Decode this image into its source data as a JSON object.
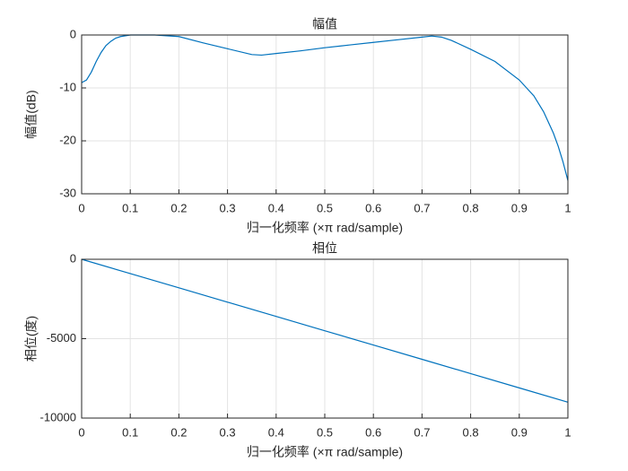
{
  "chart_data": [
    {
      "type": "line",
      "title": "幅值",
      "xlabel": "归一化频率  (×π rad/sample)",
      "ylabel": "幅值(dB)",
      "x": [
        0,
        0.01,
        0.02,
        0.03,
        0.04,
        0.05,
        0.06,
        0.07,
        0.08,
        0.1,
        0.15,
        0.2,
        0.25,
        0.3,
        0.35,
        0.37,
        0.4,
        0.45,
        0.5,
        0.55,
        0.6,
        0.65,
        0.7,
        0.72,
        0.74,
        0.76,
        0.8,
        0.85,
        0.9,
        0.93,
        0.95,
        0.97,
        0.98,
        0.99,
        1
      ],
      "values": [
        -9,
        -8.5,
        -7,
        -5,
        -3.3,
        -2,
        -1.2,
        -0.6,
        -0.3,
        0,
        0,
        -0.3,
        -1.5,
        -2.6,
        -3.7,
        -3.8,
        -3.5,
        -3,
        -2.4,
        -1.9,
        -1.4,
        -0.9,
        -0.4,
        -0.2,
        -0.4,
        -1,
        -2.7,
        -5,
        -8.5,
        -11.5,
        -14.5,
        -18.5,
        -21,
        -24,
        -27.5
      ],
      "color": "#0072bd",
      "xlim": [
        0,
        1
      ],
      "ylim": [
        -30,
        0
      ],
      "xticks": [
        0,
        0.1,
        0.2,
        0.3,
        0.4,
        0.5,
        0.6,
        0.7,
        0.8,
        0.9,
        1
      ],
      "yticks": [
        -30,
        -20,
        -10,
        0
      ],
      "grid": true
    },
    {
      "type": "line",
      "title": "相位",
      "xlabel": "归一化频率  (×π rad/sample)",
      "ylabel": "相位(度)",
      "x": [
        0,
        0.1,
        0.2,
        0.3,
        0.4,
        0.5,
        0.6,
        0.7,
        0.8,
        0.9,
        1
      ],
      "values": [
        0,
        -900,
        -1800,
        -2700,
        -3600,
        -4500,
        -5400,
        -6300,
        -7200,
        -8100,
        -9000
      ],
      "color": "#0072bd",
      "xlim": [
        0,
        1
      ],
      "ylim": [
        -10000,
        0
      ],
      "xticks": [
        0,
        0.1,
        0.2,
        0.3,
        0.4,
        0.5,
        0.6,
        0.7,
        0.8,
        0.9,
        1
      ],
      "yticks": [
        -10000,
        -5000,
        0
      ],
      "grid": true
    }
  ]
}
